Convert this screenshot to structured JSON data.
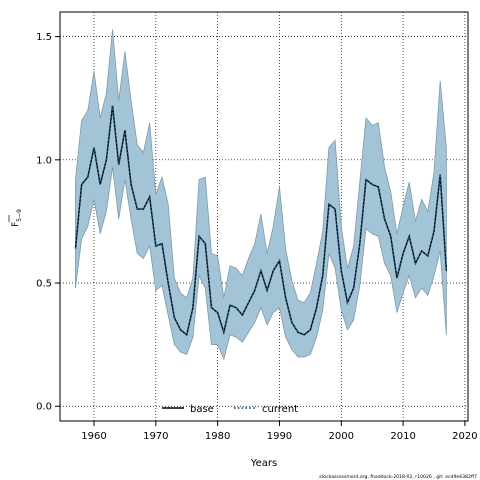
{
  "chart_data": {
    "type": "line",
    "title": "",
    "xlabel": "Years",
    "ylabel_main": "F",
    "ylabel_sub": "5−9",
    "xlim": [
      1954.5,
      2020.5
    ],
    "ylim": [
      -0.06,
      1.6
    ],
    "xticks": [
      1960,
      1970,
      1980,
      1990,
      2000,
      2010,
      2020
    ],
    "yticks": [
      0.0,
      0.5,
      1.0,
      1.5
    ],
    "ytick_labels": [
      "0.0",
      "0.5",
      "1.0",
      "1.5"
    ],
    "grid": true,
    "legend_position": "bottom-center",
    "legend": [
      {
        "name": "base",
        "style": "solid"
      },
      {
        "name": "current",
        "style": "dotted"
      }
    ],
    "colors": {
      "band_fill": "#a3c4d6",
      "band_edge": "#7e9aa8",
      "line": "#000000",
      "dot": "#1f5f8b"
    },
    "years": [
      1957,
      1958,
      1959,
      1960,
      1961,
      1962,
      1963,
      1964,
      1965,
      1966,
      1967,
      1968,
      1969,
      1970,
      1971,
      1972,
      1973,
      1974,
      1975,
      1976,
      1977,
      1978,
      1979,
      1980,
      1981,
      1982,
      1983,
      1984,
      1985,
      1986,
      1987,
      1988,
      1989,
      1990,
      1991,
      1992,
      1993,
      1994,
      1995,
      1996,
      1997,
      1998,
      1999,
      2000,
      2001,
      2002,
      2003,
      2004,
      2005,
      2006,
      2007,
      2008,
      2009,
      2010,
      2011,
      2012,
      2013,
      2014,
      2015,
      2016,
      2017
    ],
    "series": [
      {
        "name": "current",
        "role": "estimate",
        "values": [
          0.64,
          0.9,
          0.93,
          1.05,
          0.9,
          1.0,
          1.22,
          0.98,
          1.12,
          0.9,
          0.8,
          0.8,
          0.85,
          0.65,
          0.66,
          0.5,
          0.36,
          0.31,
          0.29,
          0.4,
          0.69,
          0.66,
          0.4,
          0.38,
          0.3,
          0.41,
          0.4,
          0.37,
          0.42,
          0.47,
          0.55,
          0.47,
          0.55,
          0.59,
          0.44,
          0.34,
          0.3,
          0.29,
          0.31,
          0.4,
          0.53,
          0.82,
          0.8,
          0.55,
          0.42,
          0.48,
          0.66,
          0.92,
          0.9,
          0.89,
          0.76,
          0.69,
          0.52,
          0.62,
          0.69,
          0.58,
          0.63,
          0.61,
          0.71,
          0.94,
          0.55
        ]
      },
      {
        "name": "upper",
        "role": "ci-upper",
        "values": [
          0.92,
          1.16,
          1.2,
          1.36,
          1.17,
          1.27,
          1.53,
          1.24,
          1.44,
          1.24,
          1.06,
          1.03,
          1.15,
          0.86,
          0.93,
          0.82,
          0.52,
          0.46,
          0.44,
          0.52,
          0.92,
          0.93,
          0.62,
          0.61,
          0.44,
          0.57,
          0.56,
          0.53,
          0.6,
          0.66,
          0.78,
          0.62,
          0.73,
          0.89,
          0.64,
          0.51,
          0.43,
          0.42,
          0.46,
          0.58,
          0.71,
          1.05,
          1.08,
          0.73,
          0.56,
          0.65,
          0.91,
          1.17,
          1.14,
          1.15,
          0.97,
          0.87,
          0.7,
          0.81,
          0.91,
          0.75,
          0.84,
          0.79,
          0.95,
          1.32,
          1.05
        ]
      },
      {
        "name": "lower",
        "role": "ci-lower",
        "values": [
          0.48,
          0.68,
          0.73,
          0.84,
          0.7,
          0.79,
          0.97,
          0.76,
          0.92,
          0.76,
          0.62,
          0.6,
          0.65,
          0.47,
          0.49,
          0.37,
          0.25,
          0.22,
          0.21,
          0.28,
          0.53,
          0.48,
          0.25,
          0.25,
          0.19,
          0.29,
          0.28,
          0.26,
          0.3,
          0.34,
          0.4,
          0.33,
          0.38,
          0.4,
          0.28,
          0.23,
          0.2,
          0.2,
          0.21,
          0.28,
          0.39,
          0.62,
          0.56,
          0.39,
          0.31,
          0.35,
          0.49,
          0.72,
          0.7,
          0.69,
          0.58,
          0.53,
          0.38,
          0.46,
          0.53,
          0.44,
          0.48,
          0.45,
          0.53,
          0.63,
          0.29
        ]
      }
    ],
    "footer": "stockassessment.org, fhaddock-2018-02, r10026 ,  git: ecd9e6382ff7"
  }
}
